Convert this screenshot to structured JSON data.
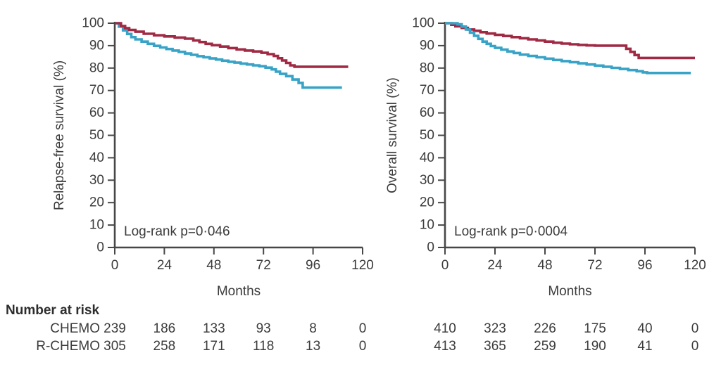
{
  "colors": {
    "rchemo_red": "#a02a44",
    "chemo_blue": "#38a3c6",
    "axis_gray": "#474747",
    "text_gray": "#3c3c3c"
  },
  "chart_data": [
    {
      "type": "line",
      "subtype": "kaplan-meier-step",
      "title": "",
      "ylabel": "Relapse-free survival (%)",
      "xlabel": "Months",
      "annotation": "Log-rank p=0·046",
      "xlim": [
        0,
        120
      ],
      "ylim": [
        0,
        100
      ],
      "xticks": [
        0,
        24,
        48,
        72,
        96,
        120
      ],
      "yticks": [
        0,
        10,
        20,
        30,
        40,
        50,
        60,
        70,
        80,
        90,
        100
      ],
      "grid": false,
      "legend": "none",
      "series": [
        {
          "name": "CHEMO",
          "color": "#38a3c6",
          "points": [
            [
              0,
              100
            ],
            [
              2,
              98.5
            ],
            [
              4,
              96.8
            ],
            [
              6,
              95.2
            ],
            [
              8,
              93.8
            ],
            [
              10,
              92.8
            ],
            [
              13,
              91.8
            ],
            [
              16,
              90.8
            ],
            [
              19,
              89.9
            ],
            [
              22,
              89.2
            ],
            [
              25,
              88.5
            ],
            [
              28,
              87.8
            ],
            [
              31,
              87.2
            ],
            [
              34,
              86.5
            ],
            [
              37,
              85.9
            ],
            [
              40,
              85.3
            ],
            [
              43,
              84.8
            ],
            [
              46,
              84.3
            ],
            [
              49,
              83.8
            ],
            [
              52,
              83.3
            ],
            [
              55,
              82.8
            ],
            [
              58,
              82.4
            ],
            [
              61,
              82.0
            ],
            [
              64,
              81.6
            ],
            [
              67,
              81.2
            ],
            [
              70,
              80.8
            ],
            [
              73,
              80.2
            ],
            [
              76,
              79.4
            ],
            [
              78,
              78.4
            ],
            [
              80,
              77.4
            ],
            [
              83,
              76.4
            ],
            [
              86,
              74.9
            ],
            [
              89,
              73.4
            ],
            [
              91,
              71.3
            ],
            [
              110,
              71.3
            ]
          ]
        },
        {
          "name": "R-CHEMO",
          "color": "#a02a44",
          "points": [
            [
              0,
              100
            ],
            [
              3,
              98.7
            ],
            [
              5,
              97.8
            ],
            [
              7,
              97.0
            ],
            [
              10,
              96.2
            ],
            [
              14,
              95.3
            ],
            [
              19,
              94.6
            ],
            [
              24,
              94.1
            ],
            [
              29,
              93.6
            ],
            [
              34,
              93.1
            ],
            [
              38,
              92.3
            ],
            [
              41,
              91.6
            ],
            [
              44,
              90.8
            ],
            [
              47,
              90.2
            ],
            [
              51,
              89.6
            ],
            [
              55,
              88.9
            ],
            [
              59,
              88.3
            ],
            [
              63,
              87.8
            ],
            [
              67,
              87.4
            ],
            [
              71,
              86.8
            ],
            [
              74,
              86.2
            ],
            [
              77,
              85.4
            ],
            [
              79,
              84.4
            ],
            [
              81,
              83.4
            ],
            [
              83,
              82.3
            ],
            [
              85,
              81.2
            ],
            [
              87,
              80.6
            ],
            [
              113,
              80.6
            ]
          ]
        }
      ]
    },
    {
      "type": "line",
      "subtype": "kaplan-meier-step",
      "title": "",
      "ylabel": "Overall survival (%)",
      "xlabel": "Months",
      "annotation": "Log-rank p=0·0004",
      "xlim": [
        0,
        120
      ],
      "ylim": [
        0,
        100
      ],
      "xticks": [
        0,
        24,
        48,
        72,
        96,
        120
      ],
      "yticks": [
        0,
        10,
        20,
        30,
        40,
        50,
        60,
        70,
        80,
        90,
        100
      ],
      "grid": false,
      "legend": "none",
      "series": [
        {
          "name": "R-CHEMO",
          "color": "#a02a44",
          "points": [
            [
              0,
              100
            ],
            [
              3,
              99.3
            ],
            [
              5,
              98.6
            ],
            [
              8,
              97.9
            ],
            [
              11,
              97.2
            ],
            [
              14,
              96.6
            ],
            [
              17,
              96.0
            ],
            [
              20,
              95.4
            ],
            [
              24,
              94.8
            ],
            [
              28,
              94.3
            ],
            [
              32,
              93.8
            ],
            [
              36,
              93.3
            ],
            [
              40,
              92.8
            ],
            [
              44,
              92.3
            ],
            [
              48,
              91.8
            ],
            [
              52,
              91.3
            ],
            [
              56,
              90.9
            ],
            [
              60,
              90.6
            ],
            [
              64,
              90.3
            ],
            [
              68,
              90.1
            ],
            [
              72,
              90.0
            ],
            [
              86,
              90.0
            ],
            [
              87,
              88.6
            ],
            [
              89,
              87.2
            ],
            [
              91,
              85.8
            ],
            [
              93,
              84.5
            ],
            [
              120,
              84.5
            ]
          ]
        },
        {
          "name": "CHEMO",
          "color": "#38a3c6",
          "points": [
            [
              0,
              100
            ],
            [
              6,
              99.5
            ],
            [
              8,
              98.5
            ],
            [
              10,
              97.2
            ],
            [
              12,
              95.8
            ],
            [
              14,
              94.4
            ],
            [
              16,
              93.0
            ],
            [
              18,
              91.8
            ],
            [
              20,
              90.8
            ],
            [
              22,
              89.8
            ],
            [
              24,
              89.0
            ],
            [
              27,
              88.2
            ],
            [
              30,
              87.4
            ],
            [
              33,
              86.7
            ],
            [
              36,
              86.0
            ],
            [
              40,
              85.4
            ],
            [
              44,
              84.8
            ],
            [
              48,
              84.2
            ],
            [
              52,
              83.6
            ],
            [
              56,
              83.1
            ],
            [
              60,
              82.6
            ],
            [
              64,
              82.1
            ],
            [
              68,
              81.6
            ],
            [
              72,
              81.1
            ],
            [
              76,
              80.6
            ],
            [
              80,
              80.1
            ],
            [
              84,
              79.6
            ],
            [
              88,
              79.1
            ],
            [
              92,
              78.6
            ],
            [
              95,
              78.1
            ],
            [
              97,
              77.8
            ],
            [
              118,
              77.8
            ]
          ]
        }
      ]
    }
  ],
  "risk_table": {
    "title": "Number at risk",
    "timepoints": [
      0,
      24,
      48,
      72,
      96,
      120
    ],
    "rows": [
      {
        "label": "CHEMO",
        "relapse_free": [
          "239",
          "186",
          "133",
          "93",
          "8",
          "0"
        ],
        "overall": [
          "410",
          "323",
          "226",
          "175",
          "40",
          "0"
        ]
      },
      {
        "label": "R-CHEMO",
        "relapse_free": [
          "305",
          "258",
          "171",
          "118",
          "13",
          "0"
        ],
        "overall": [
          "413",
          "365",
          "259",
          "190",
          "41",
          "0"
        ]
      }
    ]
  }
}
